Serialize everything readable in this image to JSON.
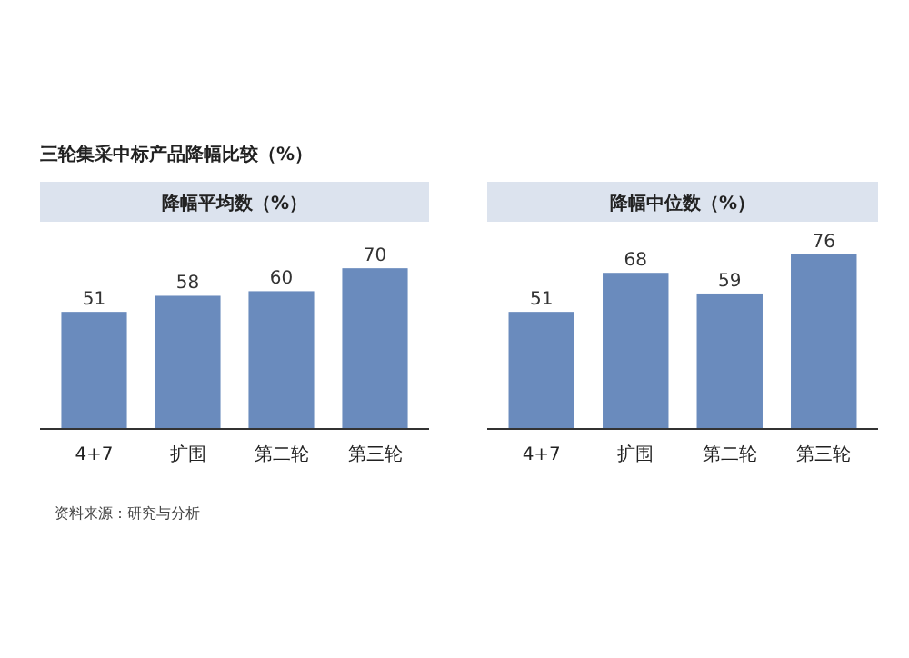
{
  "chart_data": [
    {
      "type": "bar",
      "title": "三轮集采中标产品降幅比较（%）",
      "subtitle": "降幅平均数（%）",
      "categories": [
        "4+7",
        "扩围",
        "第二轮",
        "第三轮"
      ],
      "values": [
        51,
        58,
        60,
        70
      ],
      "color": "#6a8bbd",
      "data_labels": true,
      "annotations": [
        "资料来源：研究与分析"
      ]
    },
    {
      "type": "bar",
      "subtitle": "降幅中位数（%）",
      "categories": [
        "4+7",
        "扩围",
        "第二轮",
        "第三轮"
      ],
      "values": [
        51,
        68,
        59,
        76
      ],
      "color": "#6a8bbd",
      "data_labels": true
    }
  ]
}
